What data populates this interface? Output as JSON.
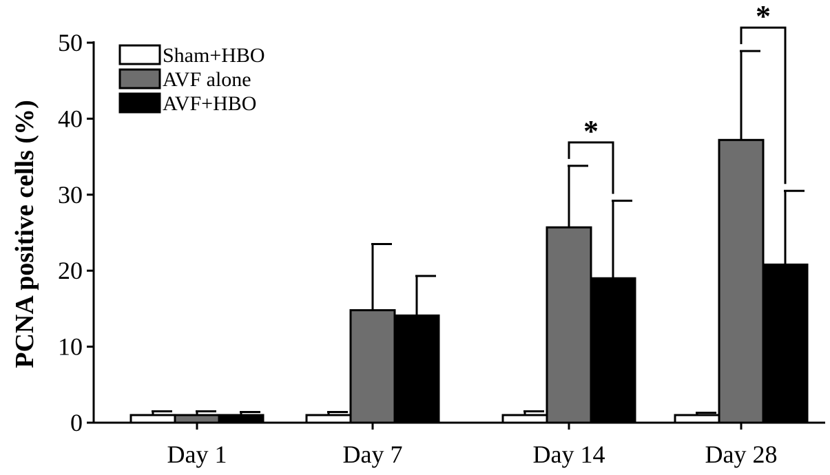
{
  "chart_data": {
    "type": "bar",
    "title": "",
    "xlabel": "",
    "ylabel": "PCNA positive cells (%)",
    "ylim": [
      0,
      50
    ],
    "yticks": [
      0,
      10,
      20,
      30,
      40,
      50
    ],
    "grid": false,
    "legend_position": "top-left",
    "categories": [
      "Day 1",
      "Day 7",
      "Day 14",
      "Day 28"
    ],
    "series": [
      {
        "name": "Sham+HBO",
        "color": "#ffffff",
        "values": [
          1.0,
          1.0,
          1.0,
          1.0
        ],
        "errors": [
          0.5,
          0.4,
          0.5,
          0.3
        ]
      },
      {
        "name": "AVF alone",
        "color": "#6e6e6e",
        "values": [
          1.0,
          14.8,
          25.7,
          37.2
        ],
        "errors": [
          0.5,
          8.7,
          8.1,
          11.7
        ]
      },
      {
        "name": "AVF+HBO",
        "color": "#000000",
        "values": [
          1.0,
          14.1,
          19.0,
          20.8
        ],
        "errors": [
          0.4,
          5.2,
          10.2,
          9.7
        ]
      }
    ],
    "annotations": [
      {
        "category": "Day 14",
        "text": "*",
        "between": [
          "AVF alone",
          "AVF+HBO"
        ]
      },
      {
        "category": "Day 28",
        "text": "*",
        "between": [
          "AVF alone",
          "AVF+HBO"
        ]
      }
    ]
  }
}
